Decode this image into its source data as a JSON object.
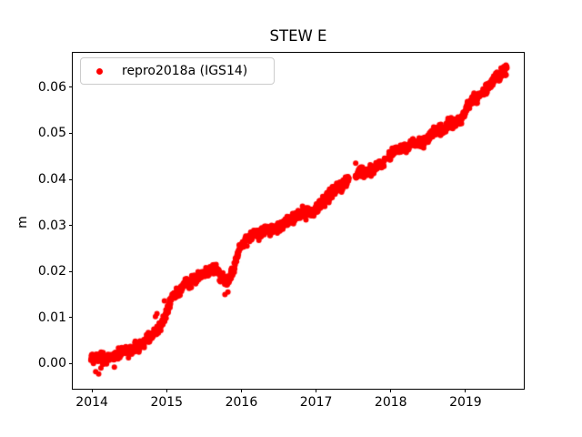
{
  "figure": {
    "title": "STEW E",
    "background": "#ffffff"
  },
  "axes": {
    "ylabel": "m",
    "frame_color": "#000000",
    "tick_color": "#000000"
  },
  "legend": {
    "position": "upper left",
    "background": "#ffffff",
    "border_color": "#cccccc",
    "items": [
      {
        "label": "repro2018a (IGS14)",
        "marker": "dot",
        "marker_color": "#ff0000"
      }
    ]
  },
  "chart_data": {
    "type": "scatter",
    "title": "STEW E",
    "xlabel": "",
    "ylabel": "m",
    "grid": false,
    "legend_position": "upper left",
    "xlim": [
      2013.743,
      2019.78
    ],
    "ylim": [
      -0.0055,
      0.0675
    ],
    "xticks": {
      "values": [
        2014,
        2015,
        2016,
        2017,
        2018,
        2019
      ],
      "labels": [
        "2014",
        "2015",
        "2016",
        "2017",
        "2018",
        "2019"
      ]
    },
    "yticks": {
      "values": [
        0.0,
        0.01,
        0.02,
        0.03,
        0.04,
        0.05,
        0.06
      ],
      "labels": [
        "0.00",
        "0.01",
        "0.02",
        "0.03",
        "0.04",
        "0.05",
        "0.06"
      ]
    },
    "series": [
      {
        "name": "repro2018a (IGS14)",
        "color": "#ff0000",
        "marker": "point",
        "marker_radius_px": 3,
        "t_start": 2013.985,
        "t_end": 2019.555,
        "samples_per_year": 365,
        "dropout": 0.08,
        "noise_sigma_m": 0.0005,
        "ar_coeff": 0.96,
        "ar_sigma_m": 0.00011,
        "seed": 7,
        "trend_anchors": [
          [
            2013.985,
            0.0008
          ],
          [
            2014.1,
            0.001
          ],
          [
            2014.25,
            0.0018
          ],
          [
            2014.4,
            0.0026
          ],
          [
            2014.55,
            0.0032
          ],
          [
            2014.7,
            0.0045
          ],
          [
            2014.82,
            0.006
          ],
          [
            2014.93,
            0.008
          ],
          [
            2015.02,
            0.012
          ],
          [
            2015.1,
            0.015
          ],
          [
            2015.22,
            0.0163
          ],
          [
            2015.35,
            0.018
          ],
          [
            2015.48,
            0.0198
          ],
          [
            2015.58,
            0.0207
          ],
          [
            2015.68,
            0.0195
          ],
          [
            2015.8,
            0.0172
          ],
          [
            2015.88,
            0.02
          ],
          [
            2015.97,
            0.0248
          ],
          [
            2016.08,
            0.0272
          ],
          [
            2016.22,
            0.028
          ],
          [
            2016.36,
            0.0288
          ],
          [
            2016.52,
            0.0302
          ],
          [
            2016.72,
            0.0318
          ],
          [
            2016.92,
            0.0332
          ],
          [
            2017.1,
            0.0358
          ],
          [
            2017.28,
            0.0388
          ],
          [
            2017.42,
            0.04
          ],
          [
            2017.55,
            0.0412
          ],
          [
            2017.72,
            0.042
          ],
          [
            2017.88,
            0.0432
          ],
          [
            2018.02,
            0.0458
          ],
          [
            2018.18,
            0.0472
          ],
          [
            2018.35,
            0.0483
          ],
          [
            2018.55,
            0.0498
          ],
          [
            2018.75,
            0.0515
          ],
          [
            2018.95,
            0.0538
          ],
          [
            2019.1,
            0.0565
          ],
          [
            2019.25,
            0.0592
          ],
          [
            2019.4,
            0.0615
          ],
          [
            2019.555,
            0.0643
          ]
        ],
        "gaps": [
          [
            2017.44,
            2017.52
          ],
          [
            2017.93,
            2017.97
          ]
        ],
        "outliers": [
          [
            2014.05,
            -0.0018
          ],
          [
            2014.09,
            -0.0023
          ],
          [
            2014.12,
            -0.001
          ],
          [
            2014.3,
            -0.0008
          ],
          [
            2014.85,
            0.0102
          ],
          [
            2014.87,
            0.0108
          ],
          [
            2014.97,
            0.0136
          ],
          [
            2015.78,
            0.015
          ],
          [
            2015.82,
            0.0155
          ],
          [
            2017.53,
            0.0435
          ]
        ]
      }
    ]
  }
}
